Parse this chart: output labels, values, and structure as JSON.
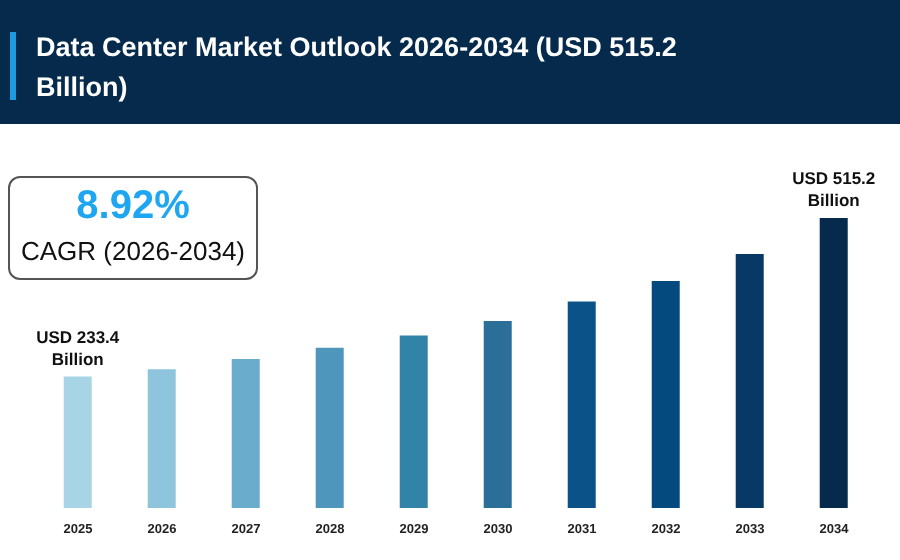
{
  "chart_data": {
    "type": "bar",
    "title": "Data Center Market Outlook 2026-2034 (USD 515.2 Billion)",
    "annotations": [
      "8.92%",
      "CAGR (2026-2034)"
    ],
    "categories": [
      "2025",
      "2026",
      "2027",
      "2028",
      "2029",
      "2030",
      "2031",
      "2032",
      "2033",
      "2034"
    ],
    "ylim": [
      0,
      515.2
    ],
    "values": [
      233.4,
      246.5,
      264.7,
      284.6,
      306.3,
      332.3,
      367,
      403.4,
      451.1,
      515.2
    ],
    "value_labels": [
      "USD 233.4 Billion",
      null,
      null,
      null,
      null,
      null,
      null,
      null,
      null,
      "USD 515.2 Billion"
    ],
    "colors": [
      "#a8d5e5",
      "#8ec4dc",
      "#6aaccb",
      "#4e96bb",
      "#3283a8",
      "#2b6f98",
      "#0b5289",
      "#054a7e",
      "#073866",
      "#062a4c"
    ],
    "grid": false,
    "legend": false
  }
}
